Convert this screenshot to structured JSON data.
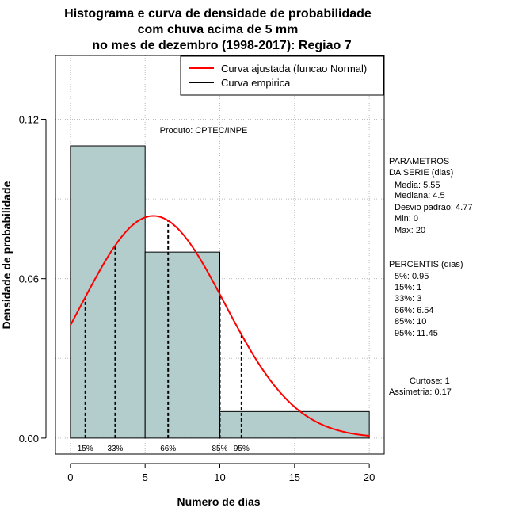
{
  "chart_data": {
    "type": "bar",
    "title": [
      "Histograma e curva de densidade de probabilidade",
      "com chuva acima de 5 mm",
      "no mes de dezembro (1998-2017): Regiao 7"
    ],
    "xlabel": "Numero de dias",
    "ylabel": "Densidade de probabilidade",
    "xlim": [
      -1,
      21
    ],
    "ylim": [
      -0.006,
      0.144
    ],
    "x_ticks": [
      0,
      5,
      10,
      15,
      20
    ],
    "y_ticks": [
      0.0,
      0.06,
      0.12
    ],
    "x_tick_labels": [
      "0",
      "5",
      "10",
      "15",
      "20"
    ],
    "y_tick_labels": [
      "0.00",
      "0.06",
      "0.12"
    ],
    "grid": true,
    "bins": [
      {
        "from": 0,
        "to": 5,
        "density": 0.11
      },
      {
        "from": 5,
        "to": 10,
        "density": 0.07
      },
      {
        "from": 10,
        "to": 20,
        "density": 0.01
      }
    ],
    "bar_color": "#b3cccc",
    "curve": {
      "name": "Curva ajustada (funcao Normal)",
      "color": "#ff0000",
      "distribution": "normal",
      "mean": 5.55,
      "sd": 4.77,
      "x_range": [
        0,
        20
      ]
    },
    "percentile_lines": [
      {
        "label": "15%",
        "x": 1
      },
      {
        "label": "33%",
        "x": 3
      },
      {
        "label": "66%",
        "x": 6.54
      },
      {
        "label": "85%",
        "x": 10
      },
      {
        "label": "95%",
        "x": 11.45
      }
    ],
    "legend": {
      "position": "top-right",
      "items": [
        {
          "label": "Curva ajustada (funcao Normal)",
          "color": "#ff0000"
        },
        {
          "label": "Curva empirica",
          "color": "#000000"
        }
      ]
    },
    "annotation": "Produto: CPTEC/INPE"
  },
  "side_panel": {
    "parametros_title": [
      "PARAMETROS",
      "DA SERIE (dias)"
    ],
    "parametros": [
      "Media: 5.55",
      "Mediana: 4.5",
      "Desvio padrao: 4.77",
      "Min: 0",
      "Max: 20"
    ],
    "percentis_title": "PERCENTIS (dias)",
    "percentis": [
      "5%: 0.95",
      "15%: 1",
      "33%: 3",
      "66%: 6.54",
      "85%: 10",
      "95%: 11.45"
    ],
    "curtose": "Curtose: 1",
    "assimetria": "Assimetria: 0.17"
  }
}
